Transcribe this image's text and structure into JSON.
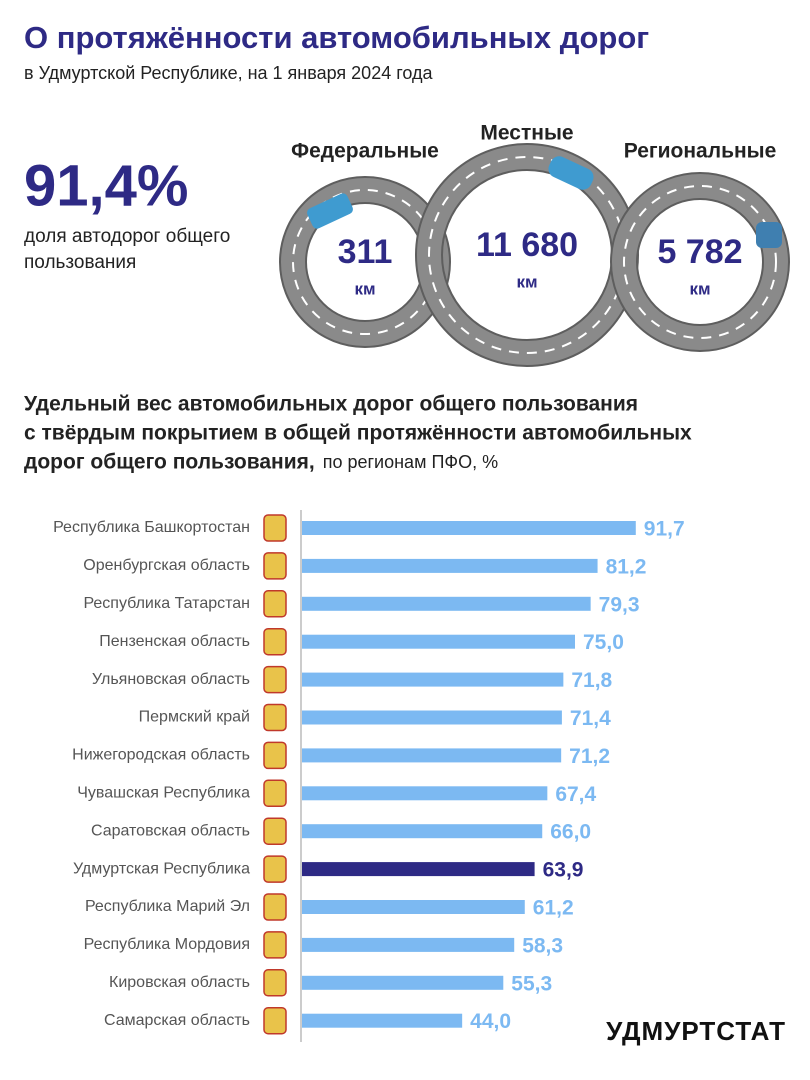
{
  "title": "О протяжённости автомобильных дорог",
  "subtitle": "в Удмуртской Республике, на 1 января 2024 года",
  "share": {
    "value": "91,4%",
    "label_lines": [
      "доля автодорог общего",
      "пользования"
    ]
  },
  "roads": [
    {
      "name": "Федеральные",
      "value": "311",
      "unit": "км"
    },
    {
      "name": "Местные",
      "value": "11 680",
      "unit": "км"
    },
    {
      "name": "Региональные",
      "value": "5 782",
      "unit": "км"
    }
  ],
  "chart_data": {
    "type": "bar",
    "orientation": "horizontal",
    "title_lines": [
      "Удельный вес автомобильных дорог общего пользования",
      "с твёрдым покрытием в общей протяжённости автомобильных",
      "дорог общего пользования,"
    ],
    "subtitle": "по регионам ПФО, %",
    "categories": [
      "Республика Башкортостан",
      "Оренбургская область",
      "Республика Татарстан",
      "Пензенская область",
      "Ульяновская область",
      "Пермский край",
      "Нижегородская область",
      "Чувашская Республика",
      "Саратовская область",
      "Удмуртская Республика",
      "Республика Марий Эл",
      "Республика Мордовия",
      "Кировская область",
      "Самарская область"
    ],
    "values": [
      91.7,
      81.2,
      79.3,
      75.0,
      71.8,
      71.4,
      71.2,
      67.4,
      66.0,
      63.9,
      61.2,
      58.3,
      55.3,
      44.0
    ],
    "value_labels": [
      "91,7",
      "81,2",
      "79,3",
      "75,0",
      "71,8",
      "71,4",
      "71,2",
      "67,4",
      "66,0",
      "63,9",
      "61,2",
      "58,3",
      "55,3",
      "44,0"
    ],
    "colors": [
      "#7cb9f2",
      "#7cb9f2",
      "#7cb9f2",
      "#7cb9f2",
      "#7cb9f2",
      "#7cb9f2",
      "#7cb9f2",
      "#7cb9f2",
      "#7cb9f2",
      "#2e2a85",
      "#7cb9f2",
      "#7cb9f2",
      "#7cb9f2",
      "#7cb9f2"
    ]
  },
  "footer": "УДМУРТСТАТ"
}
